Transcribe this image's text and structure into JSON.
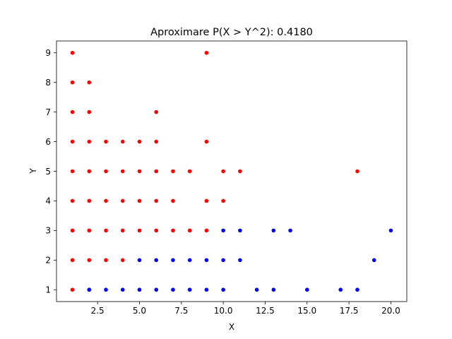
{
  "chart_data": {
    "type": "scatter",
    "title": "Aproximare P(X > Y^2): 0.4180",
    "xlabel": "X",
    "ylabel": "Y",
    "xlim": [
      0.05,
      20.95
    ],
    "ylim": [
      0.6,
      9.4
    ],
    "xticks": [
      2.5,
      5.0,
      7.5,
      10.0,
      12.5,
      15.0,
      17.5,
      20.0
    ],
    "xtick_labels": [
      "2.5",
      "5.0",
      "7.5",
      "10.0",
      "12.5",
      "15.0",
      "17.5",
      "20.0"
    ],
    "yticks": [
      1,
      2,
      3,
      4,
      5,
      6,
      7,
      8,
      9
    ],
    "ytick_labels": [
      "1",
      "2",
      "3",
      "4",
      "5",
      "6",
      "7",
      "8",
      "9"
    ],
    "grid": false,
    "series": [
      {
        "color": "#ff0000",
        "points": [
          [
            1,
            1
          ],
          [
            1,
            2
          ],
          [
            1,
            3
          ],
          [
            1,
            4
          ],
          [
            1,
            5
          ],
          [
            1,
            6
          ],
          [
            1,
            7
          ],
          [
            1,
            8
          ],
          [
            1,
            9
          ],
          [
            2,
            1
          ],
          [
            2,
            2
          ],
          [
            2,
            3
          ],
          [
            2,
            4
          ],
          [
            2,
            5
          ],
          [
            2,
            6
          ],
          [
            2,
            7
          ],
          [
            2,
            8
          ],
          [
            3,
            2
          ],
          [
            3,
            3
          ],
          [
            3,
            4
          ],
          [
            3,
            5
          ],
          [
            3,
            6
          ],
          [
            4,
            2
          ],
          [
            4,
            3
          ],
          [
            4,
            4
          ],
          [
            4,
            5
          ],
          [
            4,
            6
          ],
          [
            5,
            3
          ],
          [
            5,
            4
          ],
          [
            5,
            5
          ],
          [
            5,
            6
          ],
          [
            6,
            3
          ],
          [
            6,
            4
          ],
          [
            6,
            5
          ],
          [
            6,
            6
          ],
          [
            6,
            7
          ],
          [
            7,
            3
          ],
          [
            7,
            4
          ],
          [
            7,
            5
          ],
          [
            8,
            3
          ],
          [
            8,
            5
          ],
          [
            9,
            3
          ],
          [
            9,
            4
          ],
          [
            9,
            6
          ],
          [
            9,
            9
          ],
          [
            10,
            4
          ],
          [
            10,
            5
          ],
          [
            11,
            5
          ],
          [
            18,
            5
          ]
        ]
      },
      {
        "color": "#0000ff",
        "points": [
          [
            2,
            1
          ],
          [
            3,
            1
          ],
          [
            4,
            1
          ],
          [
            5,
            1
          ],
          [
            5,
            2
          ],
          [
            6,
            1
          ],
          [
            6,
            2
          ],
          [
            7,
            1
          ],
          [
            7,
            2
          ],
          [
            8,
            1
          ],
          [
            8,
            2
          ],
          [
            9,
            1
          ],
          [
            9,
            2
          ],
          [
            10,
            1
          ],
          [
            10,
            2
          ],
          [
            10,
            3
          ],
          [
            11,
            2
          ],
          [
            11,
            3
          ],
          [
            12,
            1
          ],
          [
            13,
            1
          ],
          [
            13,
            3
          ],
          [
            14,
            3
          ],
          [
            15,
            1
          ],
          [
            17,
            1
          ],
          [
            18,
            1
          ],
          [
            19,
            2
          ],
          [
            20,
            3
          ]
        ]
      }
    ]
  }
}
